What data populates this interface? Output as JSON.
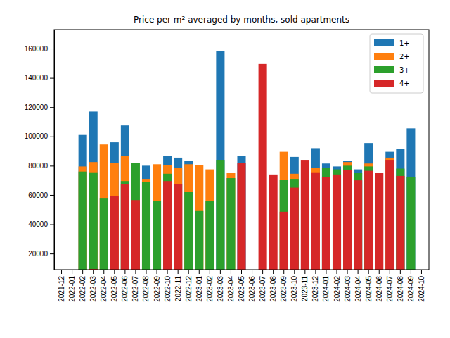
{
  "chart_data": {
    "type": "bar",
    "title": "Price per m² averaged by months, sold apartments",
    "categories": [
      "2021-12",
      "2022-01",
      "2022-02",
      "2022-03",
      "2022-04",
      "2022-05",
      "2022-06",
      "2022-07",
      "2022-08",
      "2022-09",
      "2022-10",
      "2022-11",
      "2022-12",
      "2023-01",
      "2023-02",
      "2023-03",
      "2023-04",
      "2023-05",
      "2023-06",
      "2023-07",
      "2023-08",
      "2023-09",
      "2023-10",
      "2023-11",
      "2023-12",
      "2024-01",
      "2024-02",
      "2024-03",
      "2024-04",
      "2024-05",
      "2024-06",
      "2024-07",
      "2024-08",
      "2024-09",
      "2024-10"
    ],
    "series": [
      {
        "name": "1+",
        "color": "#1f77b4",
        "values": [
          null,
          null,
          101000,
          117000,
          null,
          96000,
          107500,
          null,
          80000,
          null,
          86500,
          85500,
          83500,
          null,
          null,
          158500,
          null,
          86500,
          null,
          null,
          null,
          null,
          86000,
          null,
          92000,
          81500,
          79500,
          83500,
          77500,
          95500,
          null,
          89500,
          91500,
          105500,
          null
        ]
      },
      {
        "name": "2+",
        "color": "#ff7f0e",
        "values": [
          null,
          null,
          79500,
          82500,
          94500,
          82000,
          86500,
          null,
          71000,
          81000,
          80500,
          78500,
          81000,
          80500,
          77500,
          null,
          75000,
          null,
          null,
          null,
          null,
          89500,
          74500,
          null,
          78500,
          null,
          null,
          82500,
          null,
          81500,
          null,
          85500,
          null,
          null,
          null
        ]
      },
      {
        "name": "3+",
        "color": "#2ca02c",
        "values": [
          null,
          null,
          76000,
          75500,
          58000,
          null,
          69500,
          82000,
          69000,
          56000,
          74500,
          null,
          62000,
          49500,
          56000,
          84000,
          71500,
          null,
          null,
          null,
          null,
          70500,
          71000,
          null,
          null,
          78500,
          77500,
          80000,
          75000,
          79500,
          null,
          null,
          78000,
          72500,
          null
        ]
      },
      {
        "name": "4+",
        "color": "#d62728",
        "values": [
          null,
          null,
          null,
          9500,
          null,
          59500,
          67500,
          56500,
          null,
          null,
          69500,
          67500,
          null,
          null,
          null,
          null,
          null,
          82000,
          null,
          149500,
          74000,
          48500,
          65000,
          84000,
          75500,
          72000,
          74000,
          77000,
          70000,
          76500,
          75000,
          84000,
          73000,
          null,
          null
        ]
      }
    ],
    "ylim": [
      9000,
      173000
    ],
    "yticks": [
      20000,
      40000,
      60000,
      80000,
      100000,
      120000,
      140000,
      160000
    ],
    "stacked": false,
    "grid": false,
    "legend": "upper right"
  }
}
